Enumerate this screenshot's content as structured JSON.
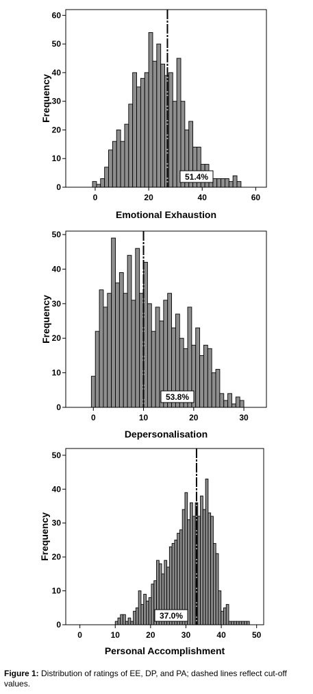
{
  "chart_data": [
    {
      "type": "bar",
      "subtype": "histogram",
      "xlabel": "Emotional Exhaustion",
      "ylabel": "Frequency",
      "xlim": [
        -11,
        64
      ],
      "ylim": [
        0,
        62
      ],
      "xticks": [
        0,
        20,
        40,
        60
      ],
      "yticks": [
        0,
        10,
        20,
        30,
        40,
        50,
        60
      ],
      "bin_width": 1.5,
      "bins": [
        -1,
        0.5,
        2,
        3.5,
        5,
        6.5,
        8,
        9.5,
        11,
        12.5,
        14,
        15.5,
        17,
        18.5,
        20,
        21.5,
        23,
        24.5,
        26,
        27.5,
        29,
        30.5,
        32,
        33.5,
        35,
        36.5,
        38,
        39.5,
        41,
        42.5,
        44,
        45.5,
        47,
        48.5,
        50,
        51.5,
        53
      ],
      "values": [
        2,
        1,
        3,
        7,
        13,
        16,
        20,
        16,
        22,
        29,
        40,
        35,
        38,
        40,
        54,
        44,
        50,
        43,
        39,
        40,
        30,
        45,
        30,
        20,
        23,
        14,
        14,
        8,
        8,
        5,
        3,
        3,
        3,
        3,
        2,
        4,
        2
      ],
      "cutoff": 27,
      "annotation": "51.4%",
      "bar_color": "#8e8e8e",
      "grid": false
    },
    {
      "type": "bar",
      "subtype": "histogram",
      "xlabel": "Depersonalisation",
      "ylabel": "Frequency",
      "xlim": [
        -5.5,
        34.5
      ],
      "ylim": [
        0,
        51
      ],
      "xticks": [
        0,
        10,
        20,
        30
      ],
      "yticks": [
        0,
        10,
        20,
        30,
        40,
        50
      ],
      "bin_width": 0.8,
      "bins": [
        -0.4,
        0.4,
        1.2,
        2,
        2.8,
        3.6,
        4.4,
        5.2,
        6,
        6.8,
        7.6,
        8.4,
        9.2,
        10,
        10.8,
        11.6,
        12.4,
        13.2,
        14,
        14.8,
        15.6,
        16.4,
        17.2,
        18,
        18.8,
        19.6,
        20.4,
        21.2,
        22,
        22.8,
        23.6,
        24.4,
        25.2,
        26,
        26.8,
        27.6,
        28.4,
        29.2
      ],
      "values": [
        9,
        22,
        34,
        29,
        33,
        49,
        36,
        39,
        33,
        44,
        31,
        46,
        33,
        42,
        30,
        22,
        29,
        25,
        31,
        33,
        23,
        27,
        20,
        17,
        29,
        18,
        23,
        15,
        18,
        17,
        10,
        11,
        4,
        2,
        4,
        1,
        3,
        2
      ],
      "cutoff": 10,
      "annotation": "53.8%",
      "bar_color": "#8e8e8e",
      "grid": false
    },
    {
      "type": "bar",
      "subtype": "histogram",
      "xlabel": "Personal Accomplishment",
      "ylabel": "Frequency",
      "xlim": [
        -4,
        52
      ],
      "ylim": [
        0,
        52
      ],
      "xticks": [
        0,
        10,
        20,
        30,
        40,
        50
      ],
      "yticks": [
        0,
        10,
        20,
        30,
        40,
        50
      ],
      "bin_width": 0.73,
      "bins": [
        10,
        10.73,
        11.46,
        12.19,
        12.92,
        13.65,
        14.38,
        15.11,
        15.84,
        16.57,
        17.3,
        18.03,
        18.76,
        19.49,
        20.22,
        20.95,
        21.68,
        22.41,
        23.14,
        23.87,
        24.6,
        25.33,
        26.06,
        26.79,
        27.52,
        28.25,
        28.98,
        29.71,
        30.44,
        31.17,
        31.9,
        32.63,
        33.36,
        34.09,
        34.82,
        35.55,
        36.28,
        37.01,
        37.74,
        38.47,
        39.2,
        39.93,
        40.66,
        41.39,
        42.12,
        42.85,
        43.58,
        44.31,
        45.04,
        45.77,
        46.5,
        47.23
      ],
      "values": [
        1,
        2,
        3,
        3,
        1,
        2,
        1,
        4,
        5,
        10,
        6,
        9,
        7,
        8,
        12,
        13,
        19,
        18,
        15,
        19,
        17,
        23,
        24,
        25,
        27,
        28,
        34,
        39,
        31,
        36,
        32,
        36,
        32,
        38,
        34,
        43,
        33,
        32,
        24,
        21,
        10,
        4,
        5,
        6,
        1,
        1,
        1,
        1,
        1,
        1,
        1,
        1
      ],
      "cutoff": 33,
      "annotation": "37.0%",
      "bar_color": "#8e8e8e",
      "grid": false
    }
  ],
  "caption": {
    "label": "Figure 1:",
    "text": "Distribution of ratings of EE, DP, and PA; dashed lines reflect cut-off values."
  }
}
